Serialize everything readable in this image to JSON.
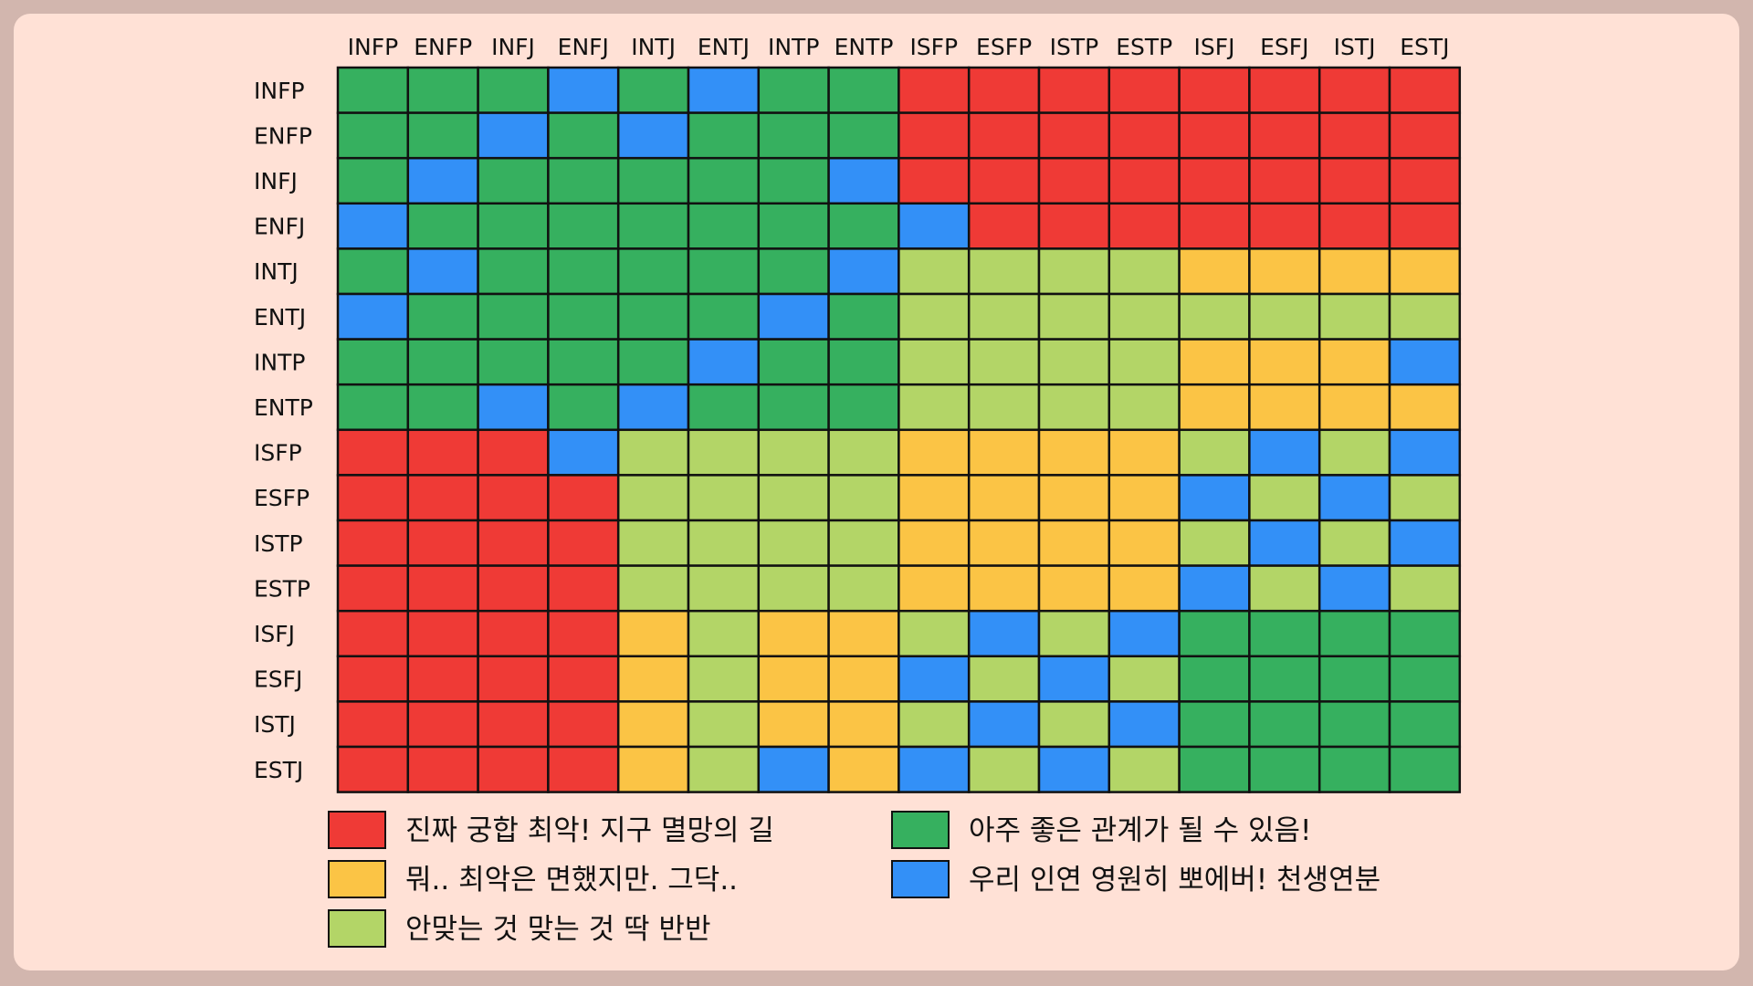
{
  "chart_data": {
    "type": "heatmap",
    "title": "",
    "xlabel": "",
    "ylabel": "",
    "columns": [
      "INFP",
      "ENFP",
      "INFJ",
      "ENFJ",
      "INTJ",
      "ENTJ",
      "INTP",
      "ENTP",
      "ISFP",
      "ESFP",
      "ISTP",
      "ESTP",
      "ISFJ",
      "ESFJ",
      "ISTJ",
      "ESTJ"
    ],
    "rows": [
      "INFP",
      "ENFP",
      "INFJ",
      "ENFJ",
      "INTJ",
      "ENTJ",
      "INTP",
      "ENTP",
      "ISFP",
      "ESFP",
      "ISTP",
      "ESTP",
      "ISFJ",
      "ESFJ",
      "ISTJ",
      "ESTJ"
    ],
    "cells": [
      [
        4,
        4,
        4,
        5,
        4,
        5,
        4,
        4,
        1,
        1,
        1,
        1,
        1,
        1,
        1,
        1
      ],
      [
        4,
        4,
        5,
        4,
        5,
        4,
        4,
        4,
        1,
        1,
        1,
        1,
        1,
        1,
        1,
        1
      ],
      [
        4,
        5,
        4,
        4,
        4,
        4,
        4,
        5,
        1,
        1,
        1,
        1,
        1,
        1,
        1,
        1
      ],
      [
        5,
        4,
        4,
        4,
        4,
        4,
        4,
        4,
        5,
        1,
        1,
        1,
        1,
        1,
        1,
        1
      ],
      [
        4,
        5,
        4,
        4,
        4,
        4,
        4,
        5,
        3,
        3,
        3,
        3,
        2,
        2,
        2,
        2
      ],
      [
        5,
        4,
        4,
        4,
        4,
        4,
        5,
        4,
        3,
        3,
        3,
        3,
        3,
        3,
        3,
        3
      ],
      [
        4,
        4,
        4,
        4,
        4,
        5,
        4,
        4,
        3,
        3,
        3,
        3,
        2,
        2,
        2,
        5
      ],
      [
        4,
        4,
        5,
        4,
        5,
        4,
        4,
        4,
        3,
        3,
        3,
        3,
        2,
        2,
        2,
        2
      ],
      [
        1,
        1,
        1,
        5,
        3,
        3,
        3,
        3,
        2,
        2,
        2,
        2,
        3,
        5,
        3,
        5
      ],
      [
        1,
        1,
        1,
        1,
        3,
        3,
        3,
        3,
        2,
        2,
        2,
        2,
        5,
        3,
        5,
        3
      ],
      [
        1,
        1,
        1,
        1,
        3,
        3,
        3,
        3,
        2,
        2,
        2,
        2,
        3,
        5,
        3,
        5
      ],
      [
        1,
        1,
        1,
        1,
        3,
        3,
        3,
        3,
        2,
        2,
        2,
        2,
        5,
        3,
        5,
        3
      ],
      [
        1,
        1,
        1,
        1,
        2,
        3,
        2,
        2,
        3,
        5,
        3,
        5,
        4,
        4,
        4,
        4
      ],
      [
        1,
        1,
        1,
        1,
        2,
        3,
        2,
        2,
        5,
        3,
        5,
        3,
        4,
        4,
        4,
        4
      ],
      [
        1,
        1,
        1,
        1,
        2,
        3,
        2,
        2,
        3,
        5,
        3,
        5,
        4,
        4,
        4,
        4
      ],
      [
        1,
        1,
        1,
        1,
        2,
        3,
        5,
        2,
        5,
        3,
        5,
        3,
        4,
        4,
        4,
        4
      ]
    ],
    "levels": [
      {
        "value": 1,
        "color": "#ef3a36",
        "label": "진짜 궁합 최악! 지구 멸망의 길"
      },
      {
        "value": 2,
        "color": "#fbc445",
        "label": "뭐.. 최악은 면했지만. 그닥.."
      },
      {
        "value": 3,
        "color": "#b3d567",
        "label": "안맞는 것 맞는 것 딱 반반"
      },
      {
        "value": 4,
        "color": "#36b05f",
        "label": "아주 좋은 관계가 될 수 있음!"
      },
      {
        "value": 5,
        "color": "#3390f7",
        "label": "우리 인연 영원히 뽀에버! 천생연분"
      }
    ],
    "legend_position": "bottom",
    "grid": true
  }
}
